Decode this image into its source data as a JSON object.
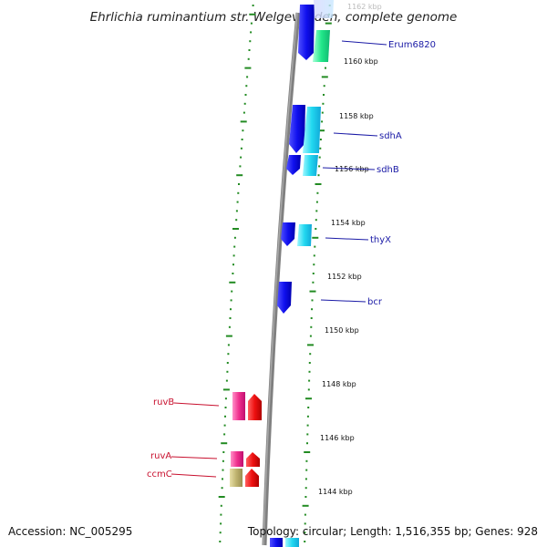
{
  "title": "Ehrlichia ruminantium str. Welgevonden, complete genome",
  "footer": {
    "accession": "Accession: NC_005295",
    "stats": "Topology: circular; Length: 1,516,355 bp; Genes: 928"
  },
  "colors": {
    "backbone": "#808080",
    "ticks": "#228b22",
    "forward_label": "#1a1aa6",
    "reverse_label": "#c8102e"
  },
  "kbp_ticks": [
    {
      "kbp": 1162,
      "label": "1162 kbp",
      "faded": true
    },
    {
      "kbp": 1160,
      "label": "1160 kbp"
    },
    {
      "kbp": 1158,
      "label": "1158 kbp"
    },
    {
      "kbp": 1156,
      "label": "1156 kbp"
    },
    {
      "kbp": 1154,
      "label": "1154 kbp"
    },
    {
      "kbp": 1152,
      "label": "1152 kbp"
    },
    {
      "kbp": 1150,
      "label": "1150 kbp"
    },
    {
      "kbp": 1148,
      "label": "1148 kbp"
    },
    {
      "kbp": 1146,
      "label": "1146 kbp"
    },
    {
      "kbp": 1144,
      "label": "1144 kbp"
    }
  ],
  "gene_labels": [
    {
      "name": "Erum6820",
      "strand": "forward"
    },
    {
      "name": "sdhA",
      "strand": "forward"
    },
    {
      "name": "sdhB",
      "strand": "forward"
    },
    {
      "name": "thyX",
      "strand": "forward"
    },
    {
      "name": "bcr",
      "strand": "forward"
    },
    {
      "name": "ruvB",
      "strand": "reverse"
    },
    {
      "name": "ruvA",
      "strand": "reverse"
    },
    {
      "name": "ccmC",
      "strand": "reverse"
    }
  ]
}
